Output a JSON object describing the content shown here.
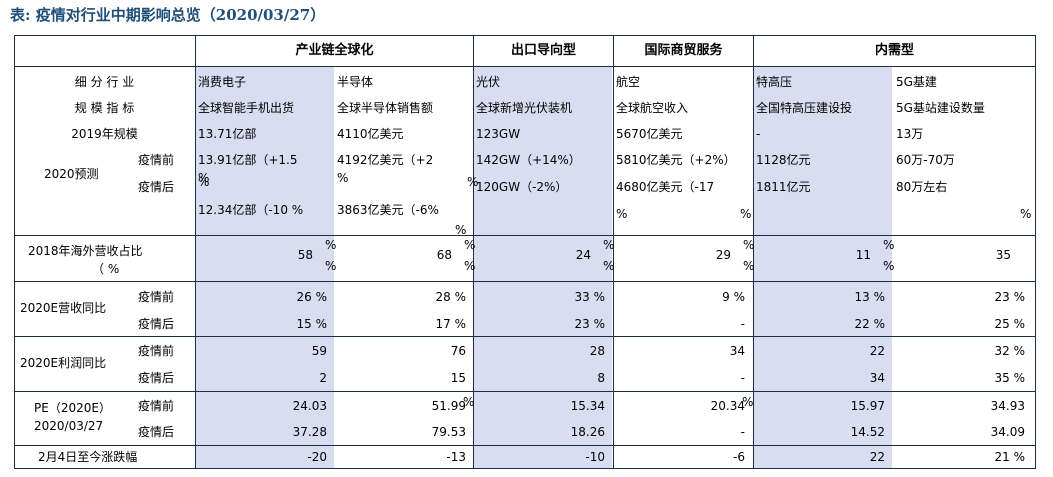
{
  "title": "表: 疫情对行业中期影响总览（2020/03/27）",
  "groups": [
    "产业链全球化",
    "出口导向型",
    "国际商贸服务",
    "内需型"
  ],
  "row_labels": {
    "segment": "细 分 行 业",
    "metric": "规 模 指 标",
    "size2019": "2019年规模",
    "forecast2020": "2020预测",
    "before": "疫情前",
    "after": "疫情后",
    "overseas": "2018年海外营收占比",
    "overseas_unit": "（ %",
    "rev_growth": "2020E营收同比",
    "profit_growth": "2020E利润同比",
    "pe_l1": "PE（2020E）",
    "pe_l2": "2020/03/27",
    "change": "2月4日至今涨跌幅"
  },
  "columns": [
    {
      "segment": "消费电子",
      "metric": "全球智能手机出货",
      "size2019": "13.71亿部",
      "before": "13.91亿部（+1.5",
      "before_wrap": "%",
      "after": "12.34亿部（-10 %",
      "overseas": "58",
      "rev_before": "26 %",
      "rev_after": "15 %",
      "profit_before": "59",
      "profit_after": "2",
      "pe_before": "24.03",
      "pe_after": "37.28",
      "change": "-20"
    },
    {
      "segment": "半导体",
      "metric": "全球半导体销售额",
      "size2019": "4110亿美元",
      "before": "4192亿美元（+2",
      "before_wrap": "%",
      "after": "3863亿美元（-6%",
      "overseas": "68",
      "rev_before": "28 %",
      "rev_after": "17 %",
      "profit_before": "76",
      "profit_after": "15",
      "pe_before": "51.99",
      "pe_after": "79.53",
      "change": "-13"
    },
    {
      "segment": "光伏",
      "metric": "全球新增光伏装机",
      "size2019": "123GW",
      "before": "142GW（+14%）",
      "before_wrap": "",
      "after": "120GW（-2%）",
      "overseas": "24",
      "rev_before": "33 %",
      "rev_after": "23 %",
      "profit_before": "28",
      "profit_after": "8",
      "pe_before": "15.34",
      "pe_after": "18.26",
      "change": "-10"
    },
    {
      "segment": "航空",
      "metric": "全球航空收入",
      "size2019": "5670亿美元",
      "before": "5810亿美元（+2%）",
      "before_wrap": "",
      "after": "4680亿美元（-17",
      "overseas": "29",
      "rev_before": "9 %",
      "rev_after": "-",
      "profit_before": "34",
      "profit_after": "-",
      "pe_before": "20.34",
      "pe_after": "-",
      "change": "-6"
    },
    {
      "segment": "特高压",
      "metric": "全国特高压建设投",
      "size2019": "-",
      "before": "1128亿元",
      "before_wrap": "",
      "after": "1811亿元",
      "overseas": "11",
      "rev_before": "13 %",
      "rev_after": "22 %",
      "profit_before": "22",
      "profit_after": "34",
      "pe_before": "15.97",
      "pe_after": "14.52",
      "change": "22"
    },
    {
      "segment": "5G基建",
      "metric": "5G基站建设数量",
      "size2019": "13万",
      "before": "60万-70万",
      "before_wrap": "",
      "after": "80万左右",
      "overseas": "35",
      "rev_before": "23 %",
      "rev_after": "25 %",
      "profit_before": "32 %",
      "profit_after": "35 %",
      "pe_before": "34.93",
      "pe_after": "34.09",
      "change": "21 %"
    }
  ],
  "pct": "%",
  "colors": {
    "title": "#1f4e79",
    "band": "#d9ddf1",
    "line": "#1f2a44"
  }
}
